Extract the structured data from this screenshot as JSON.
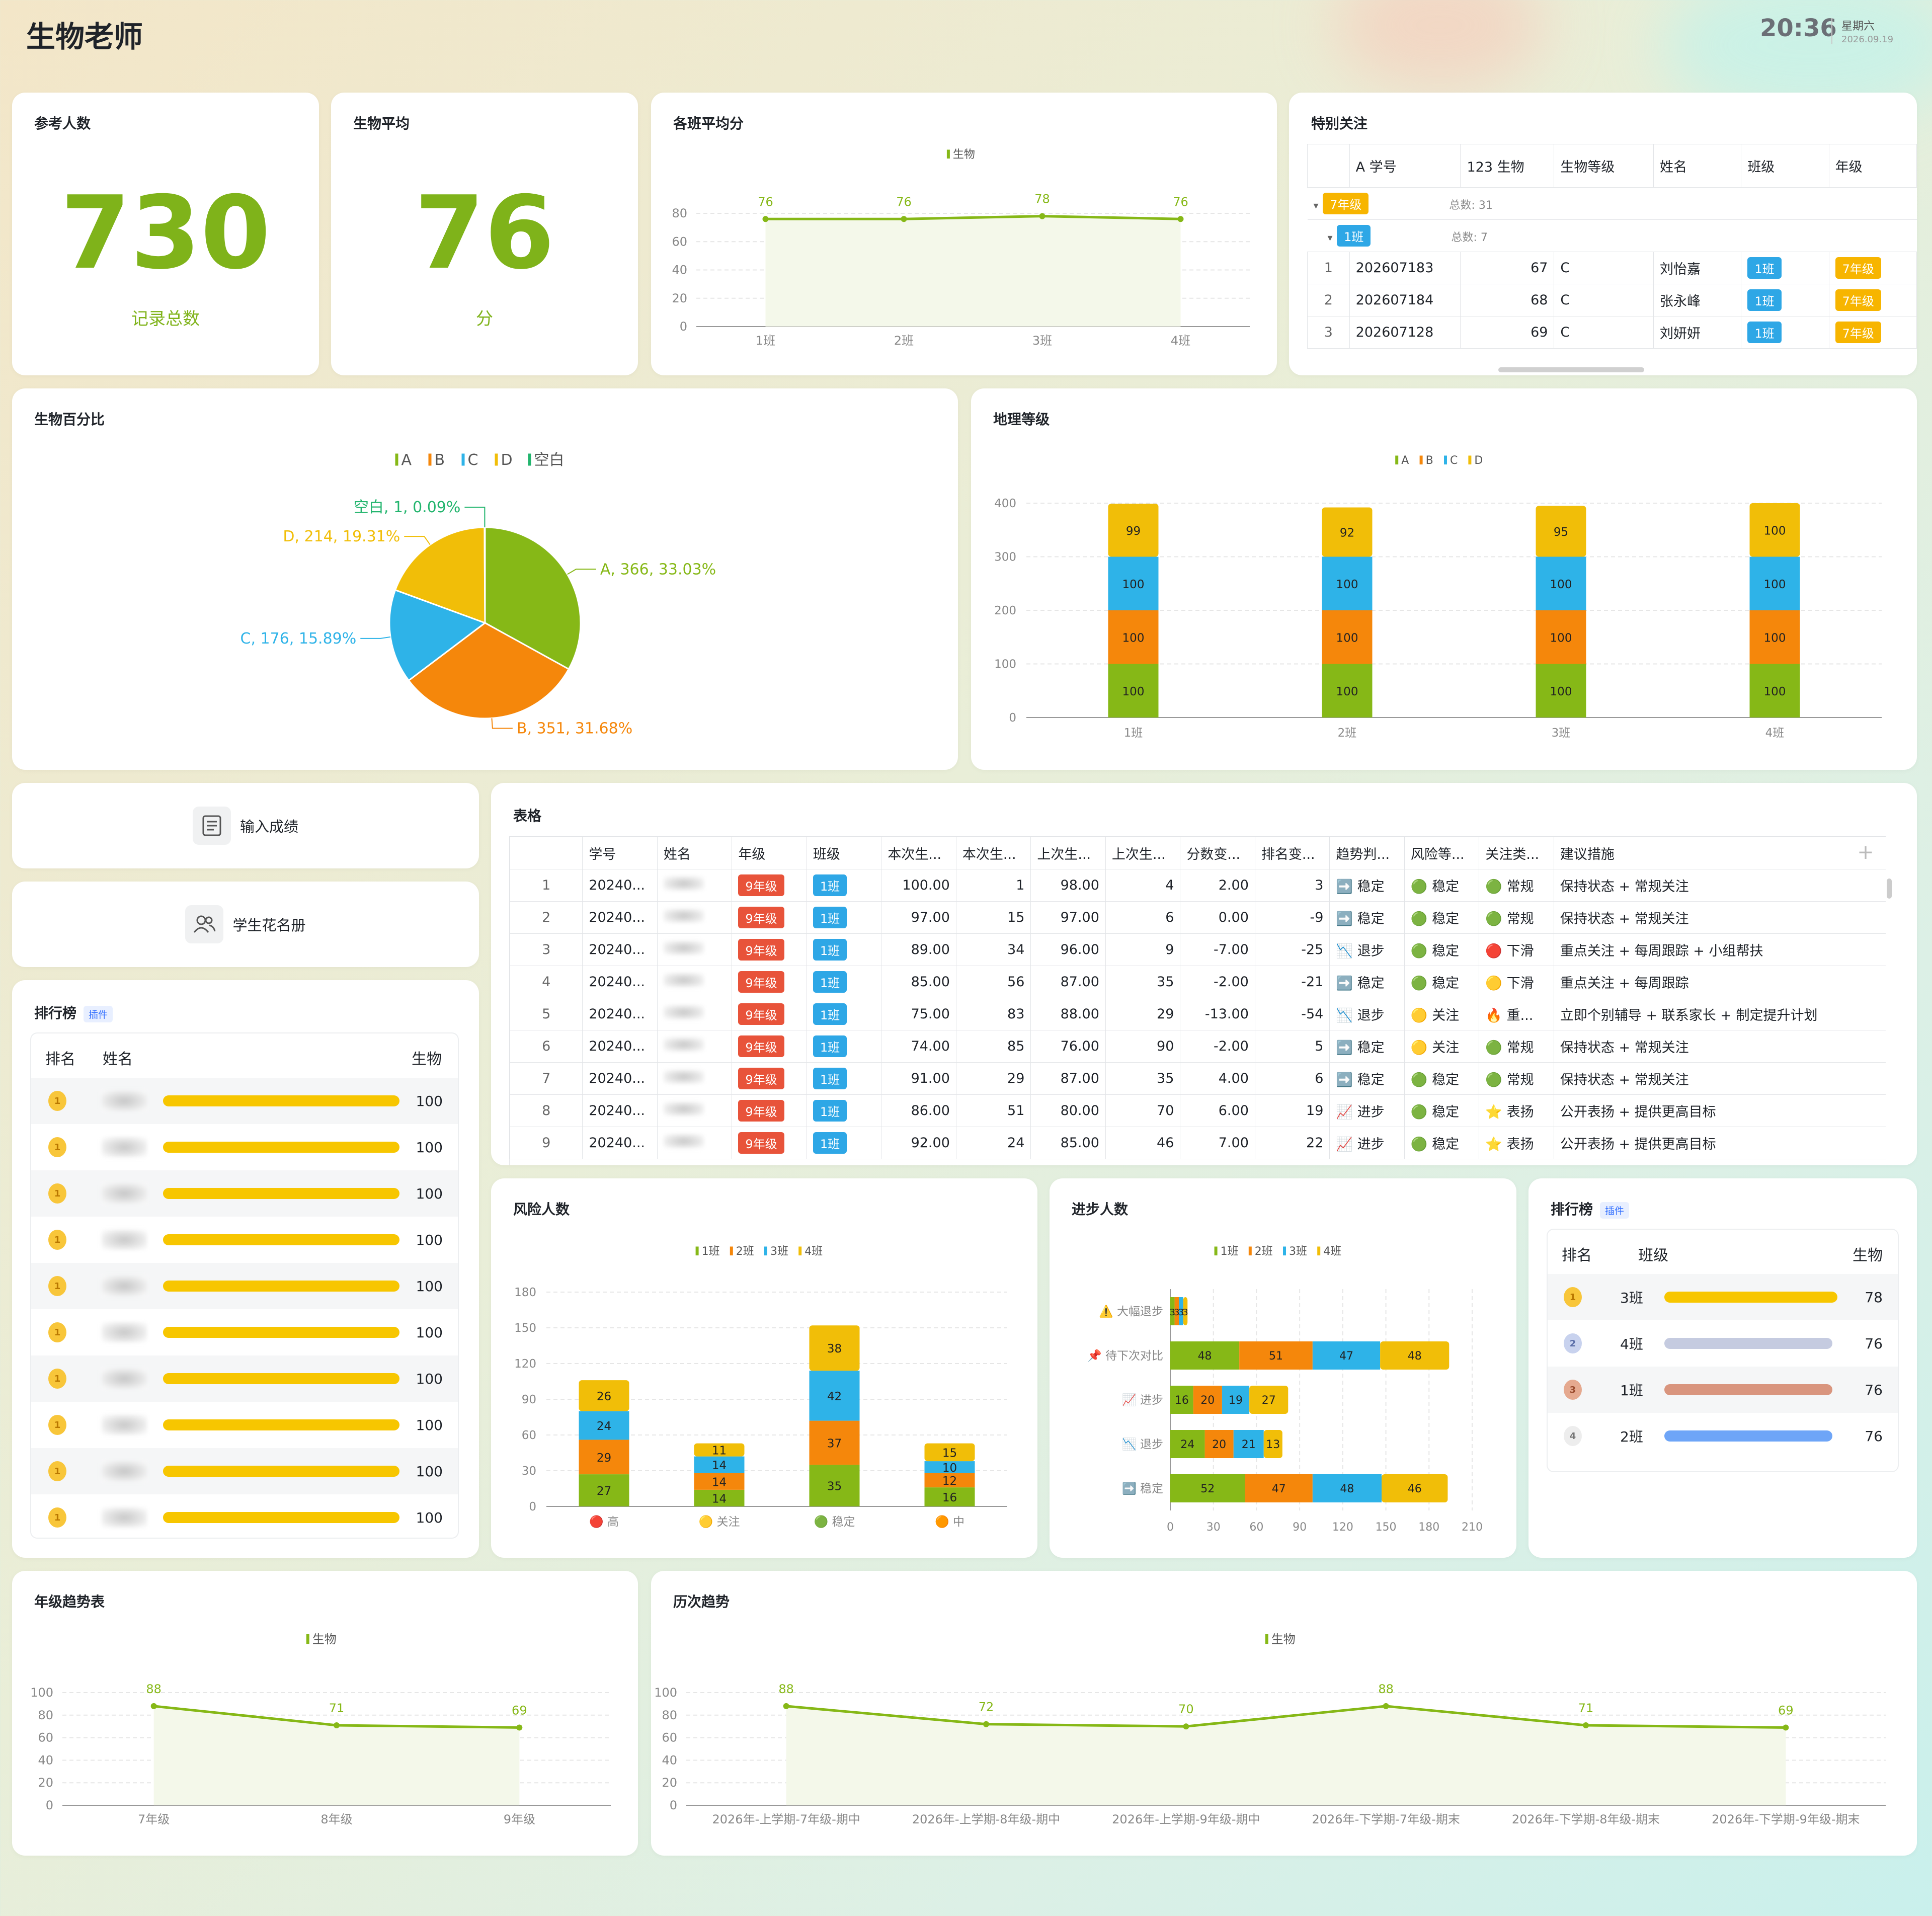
{
  "header": {
    "title": "生物老师",
    "time": "20:36",
    "weekday": "星期六",
    "date": "2026.09.19"
  },
  "kpi1": {
    "title": "参考人数",
    "value": "730",
    "unit": "记录总数"
  },
  "kpi2": {
    "title": "生物平均",
    "value": "76",
    "unit": "分"
  },
  "class_avg": {
    "title": "各班平均分",
    "legend": "生物"
  },
  "attention": {
    "title": "特别关注",
    "columns": [
      "A 学号",
      "123 生物",
      "生物等级",
      "姓名",
      "班级",
      "年级"
    ],
    "group1": {
      "label": "7年级",
      "count": "总数: 31"
    },
    "group2": {
      "label": "1班",
      "count": "总数: 7"
    },
    "rows": [
      {
        "n": "1",
        "id": "202607183",
        "score": "67",
        "grade": "C",
        "name": "刘怡嘉",
        "cls": "1班",
        "year": "7年级"
      },
      {
        "n": "2",
        "id": "202607184",
        "score": "68",
        "grade": "C",
        "name": "张永峰",
        "cls": "1班",
        "year": "7年级"
      },
      {
        "n": "3",
        "id": "202607128",
        "score": "69",
        "grade": "C",
        "name": "刘妍妍",
        "cls": "1班",
        "year": "7年级"
      }
    ]
  },
  "pie": {
    "title": "生物百分比"
  },
  "geo": {
    "title": "地理等级"
  },
  "buttons": {
    "input_scores": "输入成绩",
    "roster": "学生花名册"
  },
  "table": {
    "title": "表格",
    "columns": [
      "学号",
      "姓名",
      "年级",
      "班级",
      "本次生...",
      "本次生...",
      "上次生...",
      "上次生...",
      "分数变...",
      "排名变...",
      "趋势判...",
      "风险等...",
      "关注类...",
      "建议措施"
    ],
    "rows": [
      {
        "n": "1",
        "id": "20240...",
        "year": "9年级",
        "cls": "1班",
        "s": "100.00",
        "r": "1",
        "ps": "98.00",
        "pr": "4",
        "d": "2.00",
        "rd": "3",
        "trend": "➡️ 稳定",
        "risk": "🟢 稳定",
        "focus": "🟢 常规",
        "act": "保持状态 + 常规关注"
      },
      {
        "n": "2",
        "id": "20240...",
        "year": "9年级",
        "cls": "1班",
        "s": "97.00",
        "r": "15",
        "ps": "97.00",
        "pr": "6",
        "d": "0.00",
        "rd": "-9",
        "trend": "➡️ 稳定",
        "risk": "🟢 稳定",
        "focus": "🟢 常规",
        "act": "保持状态 + 常规关注"
      },
      {
        "n": "3",
        "id": "20240...",
        "year": "9年级",
        "cls": "1班",
        "s": "89.00",
        "r": "34",
        "ps": "96.00",
        "pr": "9",
        "d": "-7.00",
        "rd": "-25",
        "trend": "📉 退步",
        "risk": "🟢 稳定",
        "focus": "🔴 下滑",
        "act": "重点关注 + 每周跟踪 + 小组帮扶"
      },
      {
        "n": "4",
        "id": "20240...",
        "year": "9年级",
        "cls": "1班",
        "s": "85.00",
        "r": "56",
        "ps": "87.00",
        "pr": "35",
        "d": "-2.00",
        "rd": "-21",
        "trend": "➡️ 稳定",
        "risk": "🟢 稳定",
        "focus": "🟡 下滑",
        "act": "重点关注 + 每周跟踪"
      },
      {
        "n": "5",
        "id": "20240...",
        "year": "9年级",
        "cls": "1班",
        "s": "75.00",
        "r": "83",
        "ps": "88.00",
        "pr": "29",
        "d": "-13.00",
        "rd": "-54",
        "trend": "📉 退步",
        "risk": "🟡 关注",
        "focus": "🔥 重...",
        "act": "立即个别辅导 + 联系家长 + 制定提升计划"
      },
      {
        "n": "6",
        "id": "20240...",
        "year": "9年级",
        "cls": "1班",
        "s": "74.00",
        "r": "85",
        "ps": "76.00",
        "pr": "90",
        "d": "-2.00",
        "rd": "5",
        "trend": "➡️ 稳定",
        "risk": "🟡 关注",
        "focus": "🟢 常规",
        "act": "保持状态 + 常规关注"
      },
      {
        "n": "7",
        "id": "20240...",
        "year": "9年级",
        "cls": "1班",
        "s": "91.00",
        "r": "29",
        "ps": "87.00",
        "pr": "35",
        "d": "4.00",
        "rd": "6",
        "trend": "➡️ 稳定",
        "risk": "🟢 稳定",
        "focus": "🟢 常规",
        "act": "保持状态 + 常规关注"
      },
      {
        "n": "8",
        "id": "20240...",
        "year": "9年级",
        "cls": "1班",
        "s": "86.00",
        "r": "51",
        "ps": "80.00",
        "pr": "70",
        "d": "6.00",
        "rd": "19",
        "trend": "📈 进步",
        "risk": "🟢 稳定",
        "focus": "⭐ 表扬",
        "act": "公开表扬 + 提供更高目标"
      },
      {
        "n": "9",
        "id": "20240...",
        "year": "9年级",
        "cls": "1班",
        "s": "92.00",
        "r": "24",
        "ps": "85.00",
        "pr": "46",
        "d": "7.00",
        "rd": "22",
        "trend": "📈 进步",
        "risk": "🟢 稳定",
        "focus": "⭐ 表扬",
        "act": "公开表扬 + 提供更高目标"
      }
    ]
  },
  "rank1": {
    "title": "排行榜",
    "badge": "插件",
    "col_rank": "排名",
    "col_name": "姓名",
    "col_score": "生物",
    "rows": [
      {
        "score": "100",
        "pct": 100
      },
      {
        "score": "100",
        "pct": 100
      },
      {
        "score": "100",
        "pct": 100
      },
      {
        "score": "100",
        "pct": 100
      },
      {
        "score": "100",
        "pct": 100
      },
      {
        "score": "100",
        "pct": 100
      },
      {
        "score": "100",
        "pct": 100
      },
      {
        "score": "100",
        "pct": 100
      },
      {
        "score": "100",
        "pct": 100
      },
      {
        "score": "100",
        "pct": 100
      }
    ]
  },
  "risk": {
    "title": "风险人数"
  },
  "progress": {
    "title": "进步人数"
  },
  "rank2": {
    "title": "排行榜",
    "badge": "插件",
    "col_rank": "排名",
    "col_name": "班级",
    "col_score": "生物",
    "rows": [
      {
        "rank": "1",
        "name": "3班",
        "score": "78",
        "pct": 100,
        "color": "#f7c600"
      },
      {
        "rank": "2",
        "name": "4班",
        "score": "76",
        "pct": 97,
        "color": "#c5cbe0"
      },
      {
        "rank": "3",
        "name": "1班",
        "score": "76",
        "pct": 97,
        "color": "#d9957e"
      },
      {
        "rank": "4",
        "name": "2班",
        "score": "76",
        "pct": 97,
        "color": "#6ea5f7"
      }
    ]
  },
  "yeartrend": {
    "title": "年级趋势表"
  },
  "history": {
    "title": "历次趋势"
  },
  "colors": {
    "green": "#86b817",
    "orange": "#f5870b",
    "blue": "#2eb3e8",
    "yellow": "#f1be08",
    "teal": "#23b56e"
  },
  "chart_data": [
    {
      "id": "class_avg",
      "type": "line",
      "legend": [
        "生物"
      ],
      "categories": [
        "1班",
        "2班",
        "3班",
        "4班"
      ],
      "values": [
        76,
        76,
        78,
        76
      ],
      "ylim": [
        0,
        80
      ],
      "yticks": [
        0,
        20,
        40,
        60,
        80
      ]
    },
    {
      "id": "pie",
      "type": "pie",
      "legend": [
        "A",
        "B",
        "C",
        "D",
        "空白"
      ],
      "slices": [
        {
          "name": "A",
          "value": 366,
          "pct": "33.03%"
        },
        {
          "name": "B",
          "value": 351,
          "pct": "31.68%"
        },
        {
          "name": "C",
          "value": 176,
          "pct": "15.89%"
        },
        {
          "name": "D",
          "value": 214,
          "pct": "19.31%"
        },
        {
          "name": "空白",
          "value": 1,
          "pct": "0.09%"
        }
      ]
    },
    {
      "id": "geo",
      "type": "bar",
      "stacked": true,
      "legend": [
        "A",
        "B",
        "C",
        "D"
      ],
      "categories": [
        "1班",
        "2班",
        "3班",
        "4班"
      ],
      "series": [
        {
          "name": "A",
          "values": [
            100,
            100,
            100,
            100
          ]
        },
        {
          "name": "B",
          "values": [
            100,
            100,
            100,
            100
          ]
        },
        {
          "name": "C",
          "values": [
            100,
            100,
            100,
            100
          ]
        },
        {
          "name": "D",
          "values": [
            99,
            92,
            95,
            100
          ]
        }
      ],
      "ylim": [
        0,
        400
      ],
      "yticks": [
        0,
        100,
        200,
        300,
        400
      ]
    },
    {
      "id": "risk",
      "type": "bar",
      "stacked": true,
      "legend": [
        "1班",
        "2班",
        "3班",
        "4班"
      ],
      "categories": [
        "🔴 高",
        "🟡 关注",
        "🟢 稳定",
        "🟠 中"
      ],
      "series": [
        {
          "name": "1班",
          "values": [
            27,
            14,
            35,
            16
          ]
        },
        {
          "name": "2班",
          "values": [
            29,
            14,
            37,
            12
          ]
        },
        {
          "name": "3班",
          "values": [
            24,
            14,
            42,
            10
          ]
        },
        {
          "name": "4班",
          "values": [
            26,
            11,
            38,
            15
          ]
        }
      ],
      "ylim": [
        0,
        180
      ],
      "yticks": [
        0,
        30,
        60,
        90,
        120,
        150,
        180
      ]
    },
    {
      "id": "progress",
      "type": "bar",
      "horizontal": true,
      "stacked": true,
      "legend": [
        "1班",
        "2班",
        "3班",
        "4班"
      ],
      "categories": [
        "⚠️ 大幅退步",
        "📌 待下次对比",
        "📈 进步",
        "📉 退步",
        "➡️ 稳定"
      ],
      "series": [
        {
          "name": "1班",
          "values": [
            3,
            48,
            16,
            24,
            52
          ]
        },
        {
          "name": "2班",
          "values": [
            3,
            51,
            20,
            20,
            47
          ]
        },
        {
          "name": "3班",
          "values": [
            3,
            47,
            19,
            21,
            48
          ]
        },
        {
          "name": "4班",
          "values": [
            3,
            48,
            27,
            13,
            46
          ]
        }
      ],
      "xlim": [
        0,
        210
      ],
      "xticks": [
        0,
        30,
        60,
        90,
        120,
        150,
        180,
        210
      ]
    },
    {
      "id": "yeartrend",
      "type": "line",
      "legend": [
        "生物"
      ],
      "categories": [
        "7年级",
        "8年级",
        "9年级"
      ],
      "values": [
        88,
        71,
        69
      ],
      "ylim": [
        0,
        100
      ],
      "yticks": [
        0,
        20,
        40,
        60,
        80,
        100
      ]
    },
    {
      "id": "history",
      "type": "line",
      "legend": [
        "生物"
      ],
      "categories": [
        "2026年-上学期-7年级-期中",
        "2026年-上学期-8年级-期中",
        "2026年-上学期-9年级-期中",
        "2026年-下学期-7年级-期末",
        "2026年-下学期-8年级-期末",
        "2026年-下学期-9年级-期末"
      ],
      "values": [
        88,
        72,
        70,
        88,
        71,
        69
      ],
      "ylim": [
        0,
        100
      ],
      "yticks": [
        0,
        20,
        40,
        60,
        80,
        100
      ]
    }
  ]
}
